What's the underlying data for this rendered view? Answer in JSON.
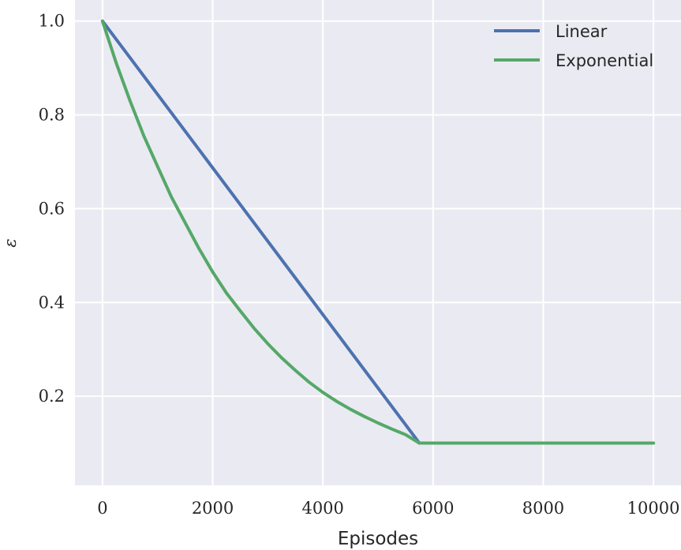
{
  "chart_data": {
    "type": "line",
    "xlabel": "Episodes",
    "ylabel": "ε",
    "xlim": [
      -500,
      10500
    ],
    "ylim": [
      0.01,
      1.045
    ],
    "xticks": [
      0,
      2000,
      4000,
      6000,
      8000,
      10000
    ],
    "xtick_labels": [
      "0",
      "2000",
      "4000",
      "6000",
      "8000",
      "10000"
    ],
    "yticks": [
      0.2,
      0.4,
      0.6,
      0.8,
      1.0
    ],
    "ytick_labels": [
      "0.2",
      "0.4",
      "0.6",
      "0.8",
      "1.0"
    ],
    "grid": true,
    "legend": "top-right",
    "background": "#eaeaf2",
    "series": [
      {
        "name": "Linear",
        "color": "#4c72b0",
        "x": [
          0,
          5750,
          10000
        ],
        "y": [
          1.0,
          0.1,
          0.1
        ]
      },
      {
        "name": "Exponential",
        "color": "#55a868",
        "x": [
          0,
          250,
          500,
          750,
          1000,
          1250,
          1500,
          1750,
          2000,
          2250,
          2500,
          2750,
          3000,
          3250,
          3500,
          3750,
          4000,
          4250,
          4500,
          4750,
          5000,
          5250,
          5500,
          5750,
          6000,
          7000,
          8000,
          9000,
          10000
        ],
        "y": [
          1.0,
          0.91,
          0.83,
          0.755,
          0.69,
          0.625,
          0.57,
          0.515,
          0.465,
          0.42,
          0.382,
          0.345,
          0.312,
          0.282,
          0.255,
          0.23,
          0.208,
          0.189,
          0.172,
          0.157,
          0.143,
          0.13,
          0.118,
          0.1,
          0.1,
          0.1,
          0.1,
          0.1,
          0.1
        ]
      }
    ]
  }
}
